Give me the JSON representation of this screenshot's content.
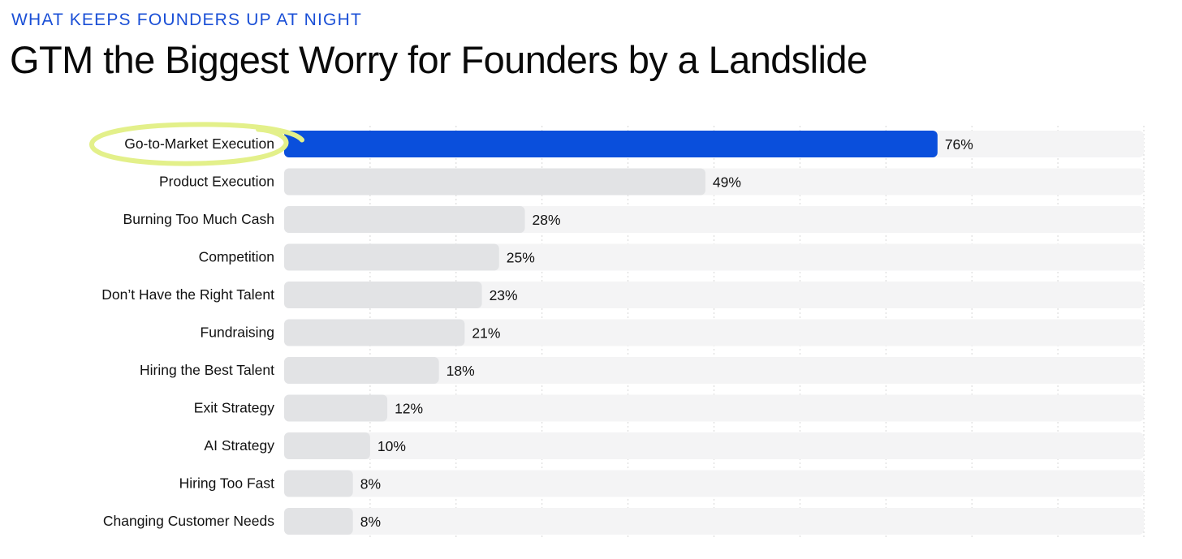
{
  "header": {
    "kicker": "WHAT KEEPS FOUNDERS UP AT NIGHT",
    "title": "GTM the Biggest Worry for Founders by a Landslide"
  },
  "colors": {
    "highlight_bar": "#0a4fdc",
    "default_bar": "#e2e3e5",
    "track": "#f4f4f5",
    "annotation_circle": "#e3f08a",
    "gridline": "#d6d6d6"
  },
  "chart_data": {
    "type": "bar",
    "orientation": "horizontal",
    "title": "GTM the Biggest Worry for Founders by a Landslide",
    "subtitle": "WHAT KEEPS FOUNDERS UP AT NIGHT",
    "xlabel": "",
    "ylabel": "",
    "xlim": [
      0,
      100
    ],
    "grid": true,
    "highlighted_category": "Go-to-Market Execution",
    "categories": [
      "Go-to-Market Execution",
      "Product Execution",
      "Burning Too Much Cash",
      "Competition",
      "Don’t Have the Right Talent",
      "Fundraising",
      "Hiring the Best Talent",
      "Exit Strategy",
      "AI Strategy",
      "Hiring Too Fast",
      "Changing Customer Needs"
    ],
    "values": [
      76,
      49,
      28,
      25,
      23,
      21,
      18,
      12,
      10,
      8,
      8
    ],
    "value_labels": [
      "76%",
      "49%",
      "28%",
      "25%",
      "23%",
      "21%",
      "18%",
      "12%",
      "10%",
      "8%",
      "8%"
    ]
  }
}
